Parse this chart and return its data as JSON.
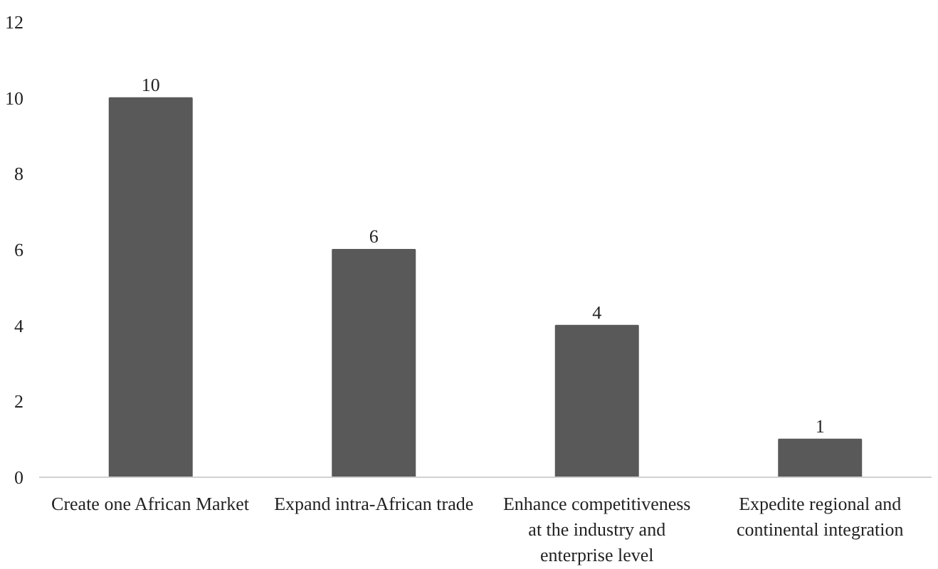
{
  "chart_data": {
    "type": "bar",
    "categories": [
      "Create one African Market",
      "Expand intra-African trade",
      "Enhance competitiveness at the industry and enterprise level",
      "Expedite regional and continental integration"
    ],
    "values": [
      10,
      6,
      4,
      1
    ],
    "color": "#595959",
    "ylim": [
      0,
      12
    ],
    "yticks": [
      0,
      2,
      4,
      6,
      8,
      10,
      12
    ],
    "grid": false,
    "data_labels": true
  }
}
